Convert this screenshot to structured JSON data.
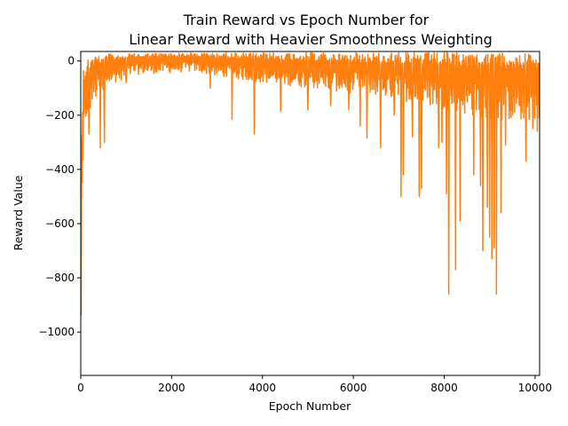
{
  "chart_data": {
    "type": "line",
    "title_lines": [
      "Train Reward vs Epoch Number for",
      "Linear Reward with Heavier Smoothness Weighting"
    ],
    "xlabel": "Epoch Number",
    "ylabel": "Reward Value",
    "xlim": [
      0,
      10100
    ],
    "ylim": [
      -1160,
      35
    ],
    "x_ticks": [
      0,
      2000,
      4000,
      6000,
      8000,
      10000
    ],
    "y_ticks": [
      -1000,
      -800,
      -600,
      -400,
      -200,
      0
    ],
    "grid": false,
    "legend": "none",
    "series": [
      {
        "color": "#ff7f0e",
        "x_start": 0,
        "x_step": 10,
        "points": 1010,
        "upper_envelope": [
          [
            0,
            -600
          ],
          [
            20,
            -150
          ],
          [
            60,
            -20
          ],
          [
            150,
            15
          ],
          [
            400,
            25
          ],
          [
            2000,
            30
          ],
          [
            10100,
            32
          ]
        ],
        "typical_lower_envelope": [
          [
            0,
            -1150
          ],
          [
            30,
            -850
          ],
          [
            60,
            -400
          ],
          [
            120,
            -220
          ],
          [
            300,
            -150
          ],
          [
            600,
            -90
          ],
          [
            1200,
            -50
          ],
          [
            2500,
            -40
          ],
          [
            3500,
            -70
          ],
          [
            5000,
            -100
          ],
          [
            6500,
            -130
          ],
          [
            7500,
            -160
          ],
          [
            8500,
            -200
          ],
          [
            9200,
            -220
          ],
          [
            10100,
            -220
          ]
        ],
        "spikes": [
          {
            "x": 180,
            "y": -270
          },
          {
            "x": 430,
            "y": -320
          },
          {
            "x": 520,
            "y": -300
          },
          {
            "x": 1000,
            "y": -80
          },
          {
            "x": 2850,
            "y": -100
          },
          {
            "x": 3330,
            "y": -215
          },
          {
            "x": 3820,
            "y": -270
          },
          {
            "x": 4400,
            "y": -185
          },
          {
            "x": 5000,
            "y": -180
          },
          {
            "x": 5500,
            "y": -165
          },
          {
            "x": 5900,
            "y": -180
          },
          {
            "x": 6150,
            "y": -240
          },
          {
            "x": 6300,
            "y": -285
          },
          {
            "x": 6600,
            "y": -320
          },
          {
            "x": 6900,
            "y": -200
          },
          {
            "x": 7050,
            "y": -500
          },
          {
            "x": 7100,
            "y": -420
          },
          {
            "x": 7300,
            "y": -280
          },
          {
            "x": 7450,
            "y": -500
          },
          {
            "x": 7500,
            "y": -470
          },
          {
            "x": 7880,
            "y": -320
          },
          {
            "x": 7950,
            "y": -300
          },
          {
            "x": 8050,
            "y": -490
          },
          {
            "x": 8100,
            "y": -860
          },
          {
            "x": 8250,
            "y": -770
          },
          {
            "x": 8350,
            "y": -590
          },
          {
            "x": 8650,
            "y": -420
          },
          {
            "x": 8800,
            "y": -460
          },
          {
            "x": 8850,
            "y": -700
          },
          {
            "x": 8950,
            "y": -540
          },
          {
            "x": 9000,
            "y": -650
          },
          {
            "x": 9050,
            "y": -730
          },
          {
            "x": 9100,
            "y": -690
          },
          {
            "x": 9150,
            "y": -860
          },
          {
            "x": 9250,
            "y": -560
          },
          {
            "x": 9350,
            "y": -310
          },
          {
            "x": 9550,
            "y": -190
          },
          {
            "x": 9800,
            "y": -370
          },
          {
            "x": 9950,
            "y": -250
          },
          {
            "x": 10050,
            "y": -260
          }
        ]
      }
    ]
  }
}
